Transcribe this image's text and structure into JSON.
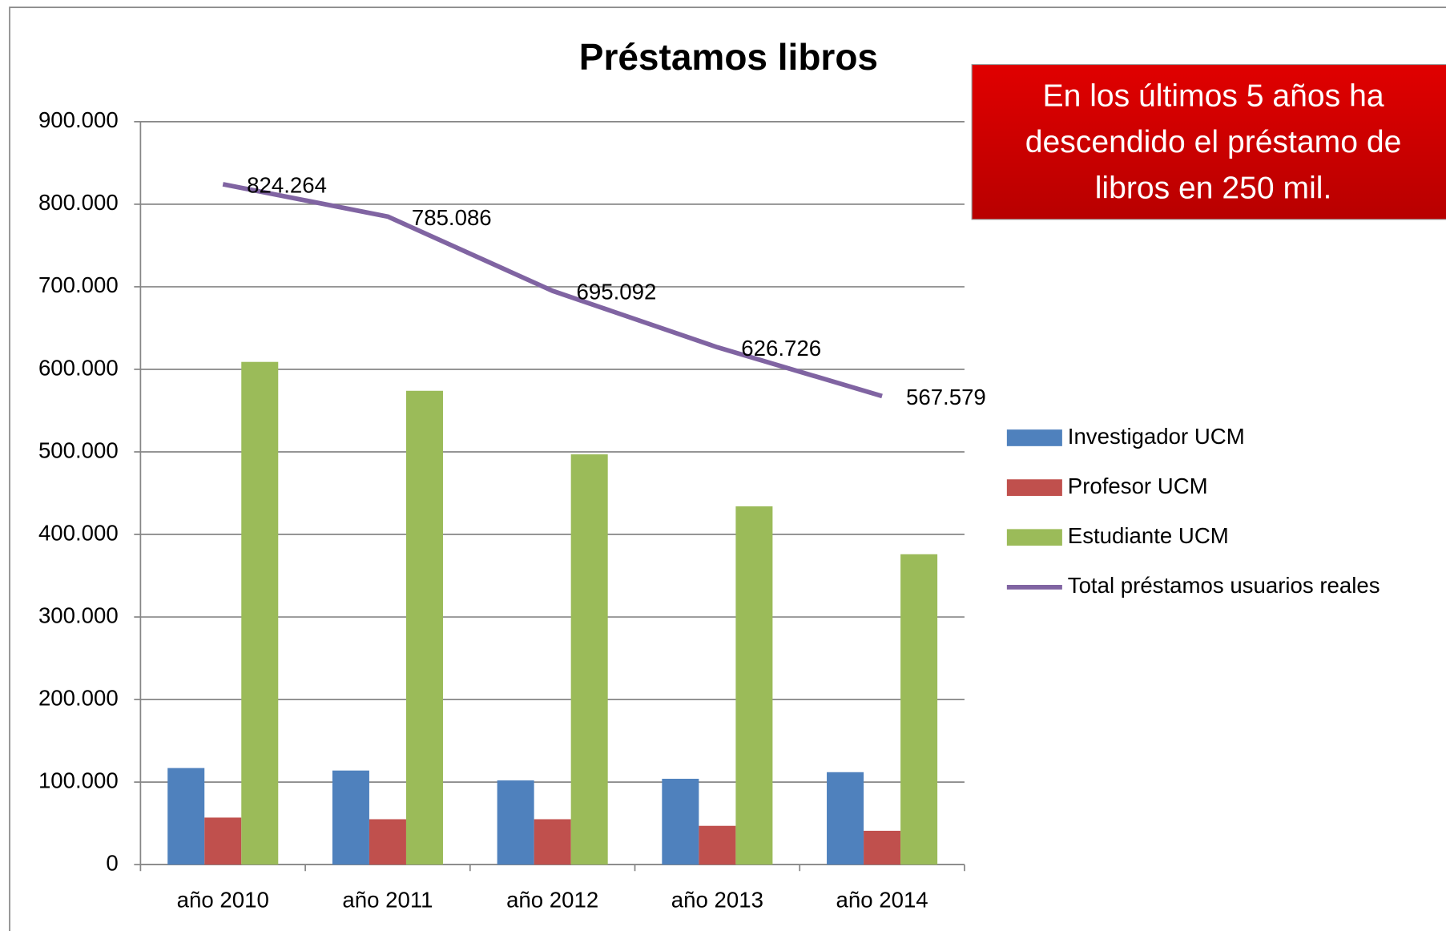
{
  "chart_data": {
    "type": "bar",
    "title": "Préstamos libros",
    "annotation": [
      "En los  últimos 5 años ha",
      "descendido el préstamo de",
      "libros en 250 mil."
    ],
    "categories": [
      "año 2010",
      "año 2011",
      "año 2012",
      "año 2013",
      "año 2014"
    ],
    "series": [
      {
        "name": "Investigador UCM",
        "color": "#4f81bd",
        "type": "bar",
        "values": [
          117000,
          114000,
          102000,
          104000,
          112000
        ]
      },
      {
        "name": "Profesor UCM",
        "color": "#c0504d",
        "type": "bar",
        "values": [
          57000,
          55000,
          55000,
          47000,
          41000
        ]
      },
      {
        "name": "Estudiante  UCM",
        "color": "#9bbb59",
        "type": "bar",
        "values": [
          609000,
          574000,
          497000,
          434000,
          376000
        ]
      },
      {
        "name": "Total préstamos  usuarios reales",
        "color": "#8064a2",
        "type": "line",
        "values": [
          824264,
          785086,
          695092,
          626726,
          567579
        ],
        "value_labels": [
          "824.264",
          "785.086",
          "695.092",
          "626.726",
          "567.579"
        ]
      }
    ],
    "ylim": [
      0,
      900000
    ],
    "yticks": [
      0,
      {
        "value": 100000,
        "label": "100.000"
      },
      {
        "value": 200000,
        "label": "200.000"
      },
      {
        "value": 300000,
        "label": "300.000"
      },
      {
        "value": 400000,
        "label": "400.000"
      },
      {
        "value": 500000,
        "label": "500.000"
      },
      {
        "value": 600000,
        "label": "600.000"
      },
      {
        "value": 700000,
        "label": "700.000"
      },
      {
        "value": 800000,
        "label": "800.000"
      },
      {
        "value": 900000,
        "label": "900.000"
      }
    ],
    "grid": true,
    "legend": "right"
  }
}
